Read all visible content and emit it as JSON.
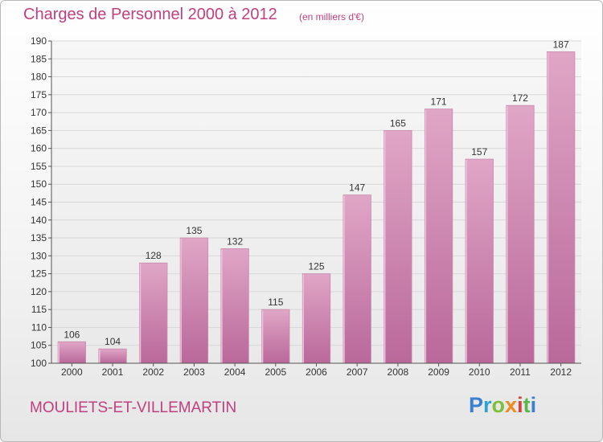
{
  "header": {
    "title": "Charges de Personnel 2000 à 2012",
    "unit_note": "(en milliers d'€)"
  },
  "footer": {
    "commune": "MOULIETS-ET-VILLEMARTIN",
    "logo_letters": [
      {
        "char": "P",
        "color": "#3a7fd1"
      },
      {
        "char": "r",
        "color": "#2aa2d6"
      },
      {
        "char": "o",
        "color": "#7cbf3a"
      },
      {
        "char": "x",
        "color": "#f08a1c"
      },
      {
        "char": "i",
        "color": "#e33b3b"
      },
      {
        "char": "t",
        "color": "#56b84a"
      },
      {
        "char": "i",
        "color": "#3a7fd1"
      }
    ]
  },
  "colors": {
    "bar": "#d68fb5",
    "bar_dark": "#b9689a",
    "accent": "#c0407f",
    "grid": "#d8d8d8"
  },
  "chart_data": {
    "type": "bar",
    "title": "Charges de Personnel 2000 à 2012",
    "subtitle": "(en milliers d'€)",
    "categories": [
      "2000",
      "2001",
      "2002",
      "2003",
      "2004",
      "2005",
      "2006",
      "2007",
      "2008",
      "2009",
      "2010",
      "2011",
      "2012"
    ],
    "values": [
      106,
      104,
      128,
      135,
      132,
      115,
      125,
      147,
      165,
      171,
      157,
      172,
      187
    ],
    "ylim": [
      100,
      190
    ],
    "yticks": [
      100,
      105,
      110,
      115,
      120,
      125,
      130,
      135,
      140,
      145,
      150,
      155,
      160,
      165,
      170,
      175,
      180,
      185,
      190
    ],
    "xlabel": "",
    "ylabel": "",
    "grid": true,
    "data_labels": true
  }
}
